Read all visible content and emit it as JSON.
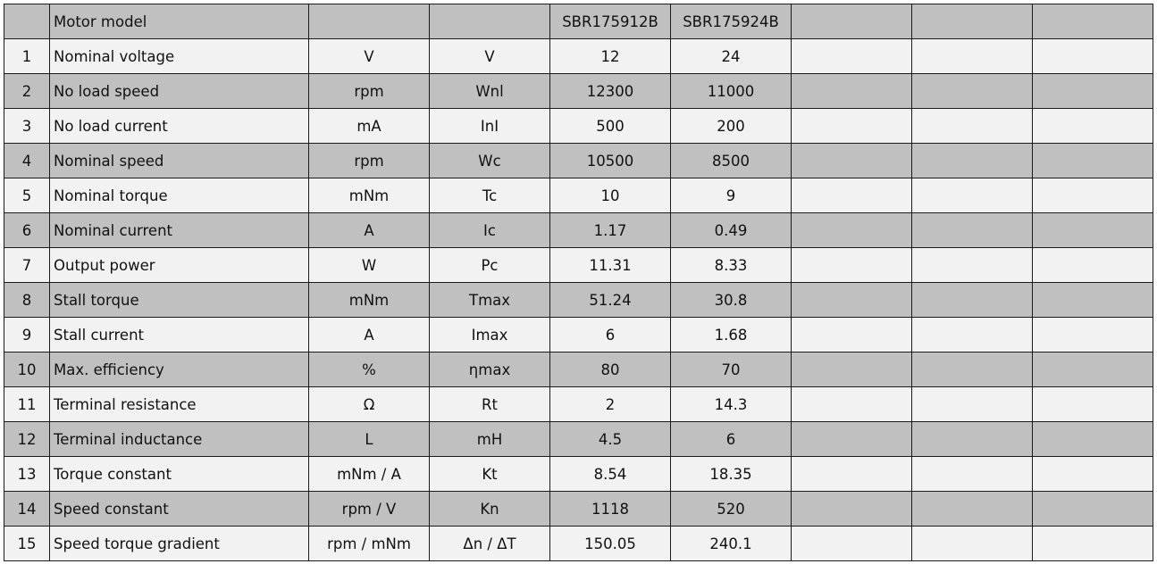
{
  "header": {
    "motor_model_label": "Motor model",
    "models": [
      "SBR175912B",
      "SBR175924B"
    ]
  },
  "colors": {
    "header_row": "#c0c0c0",
    "alternate_row": "#c0c0c0",
    "light_row": "#f2f2f2"
  },
  "rows": [
    {
      "n": "1",
      "name": "Nominal voltage",
      "unit": "V",
      "symbol": "V",
      "values": [
        "12",
        "24"
      ]
    },
    {
      "n": "2",
      "name": "No load speed",
      "unit": "rpm",
      "symbol": "Wnl",
      "values": [
        "12300",
        "11000"
      ]
    },
    {
      "n": "3",
      "name": "No load current",
      "unit": "mA",
      "symbol": "InI",
      "values": [
        "500",
        "200"
      ]
    },
    {
      "n": "4",
      "name": "Nominal speed",
      "unit": "rpm",
      "symbol": "Wc",
      "values": [
        "10500",
        "8500"
      ]
    },
    {
      "n": "5",
      "name": "Nominal torque",
      "unit": "mNm",
      "symbol": "Tc",
      "values": [
        "10",
        "9"
      ]
    },
    {
      "n": "6",
      "name": "Nominal current",
      "unit": "A",
      "symbol": "Ic",
      "values": [
        "1.17",
        "0.49"
      ]
    },
    {
      "n": "7",
      "name": "Output power",
      "unit": "W",
      "symbol": "Pc",
      "values": [
        "11.31",
        "8.33"
      ]
    },
    {
      "n": "8",
      "name": "Stall torque",
      "unit": "mNm",
      "symbol": "Tmax",
      "values": [
        "51.24",
        "30.8"
      ]
    },
    {
      "n": "9",
      "name": "Stall current",
      "unit": "A",
      "symbol": "Imax",
      "values": [
        "6",
        "1.68"
      ]
    },
    {
      "n": "10",
      "name": "Max. efficiency",
      "unit": "%",
      "symbol": "ηmax",
      "values": [
        "80",
        "70"
      ]
    },
    {
      "n": "11",
      "name": "Terminal resistance",
      "unit": "Ω",
      "symbol": "Rt",
      "values": [
        "2",
        "14.3"
      ]
    },
    {
      "n": "12",
      "name": "Terminal inductance",
      "unit": "L",
      "symbol": "mH",
      "values": [
        "4.5",
        "6"
      ]
    },
    {
      "n": "13",
      "name": "Torque constant",
      "unit": "mNm / A",
      "symbol": "Kt",
      "values": [
        "8.54",
        "18.35"
      ]
    },
    {
      "n": "14",
      "name": "Speed constant",
      "unit": "rpm / V",
      "symbol": "Kn",
      "values": [
        "1118",
        "520"
      ]
    },
    {
      "n": "15",
      "name": "Speed torque gradient",
      "unit": "rpm / mNm",
      "symbol": "Δn / ΔT",
      "values": [
        "150.05",
        "240.1"
      ]
    }
  ]
}
